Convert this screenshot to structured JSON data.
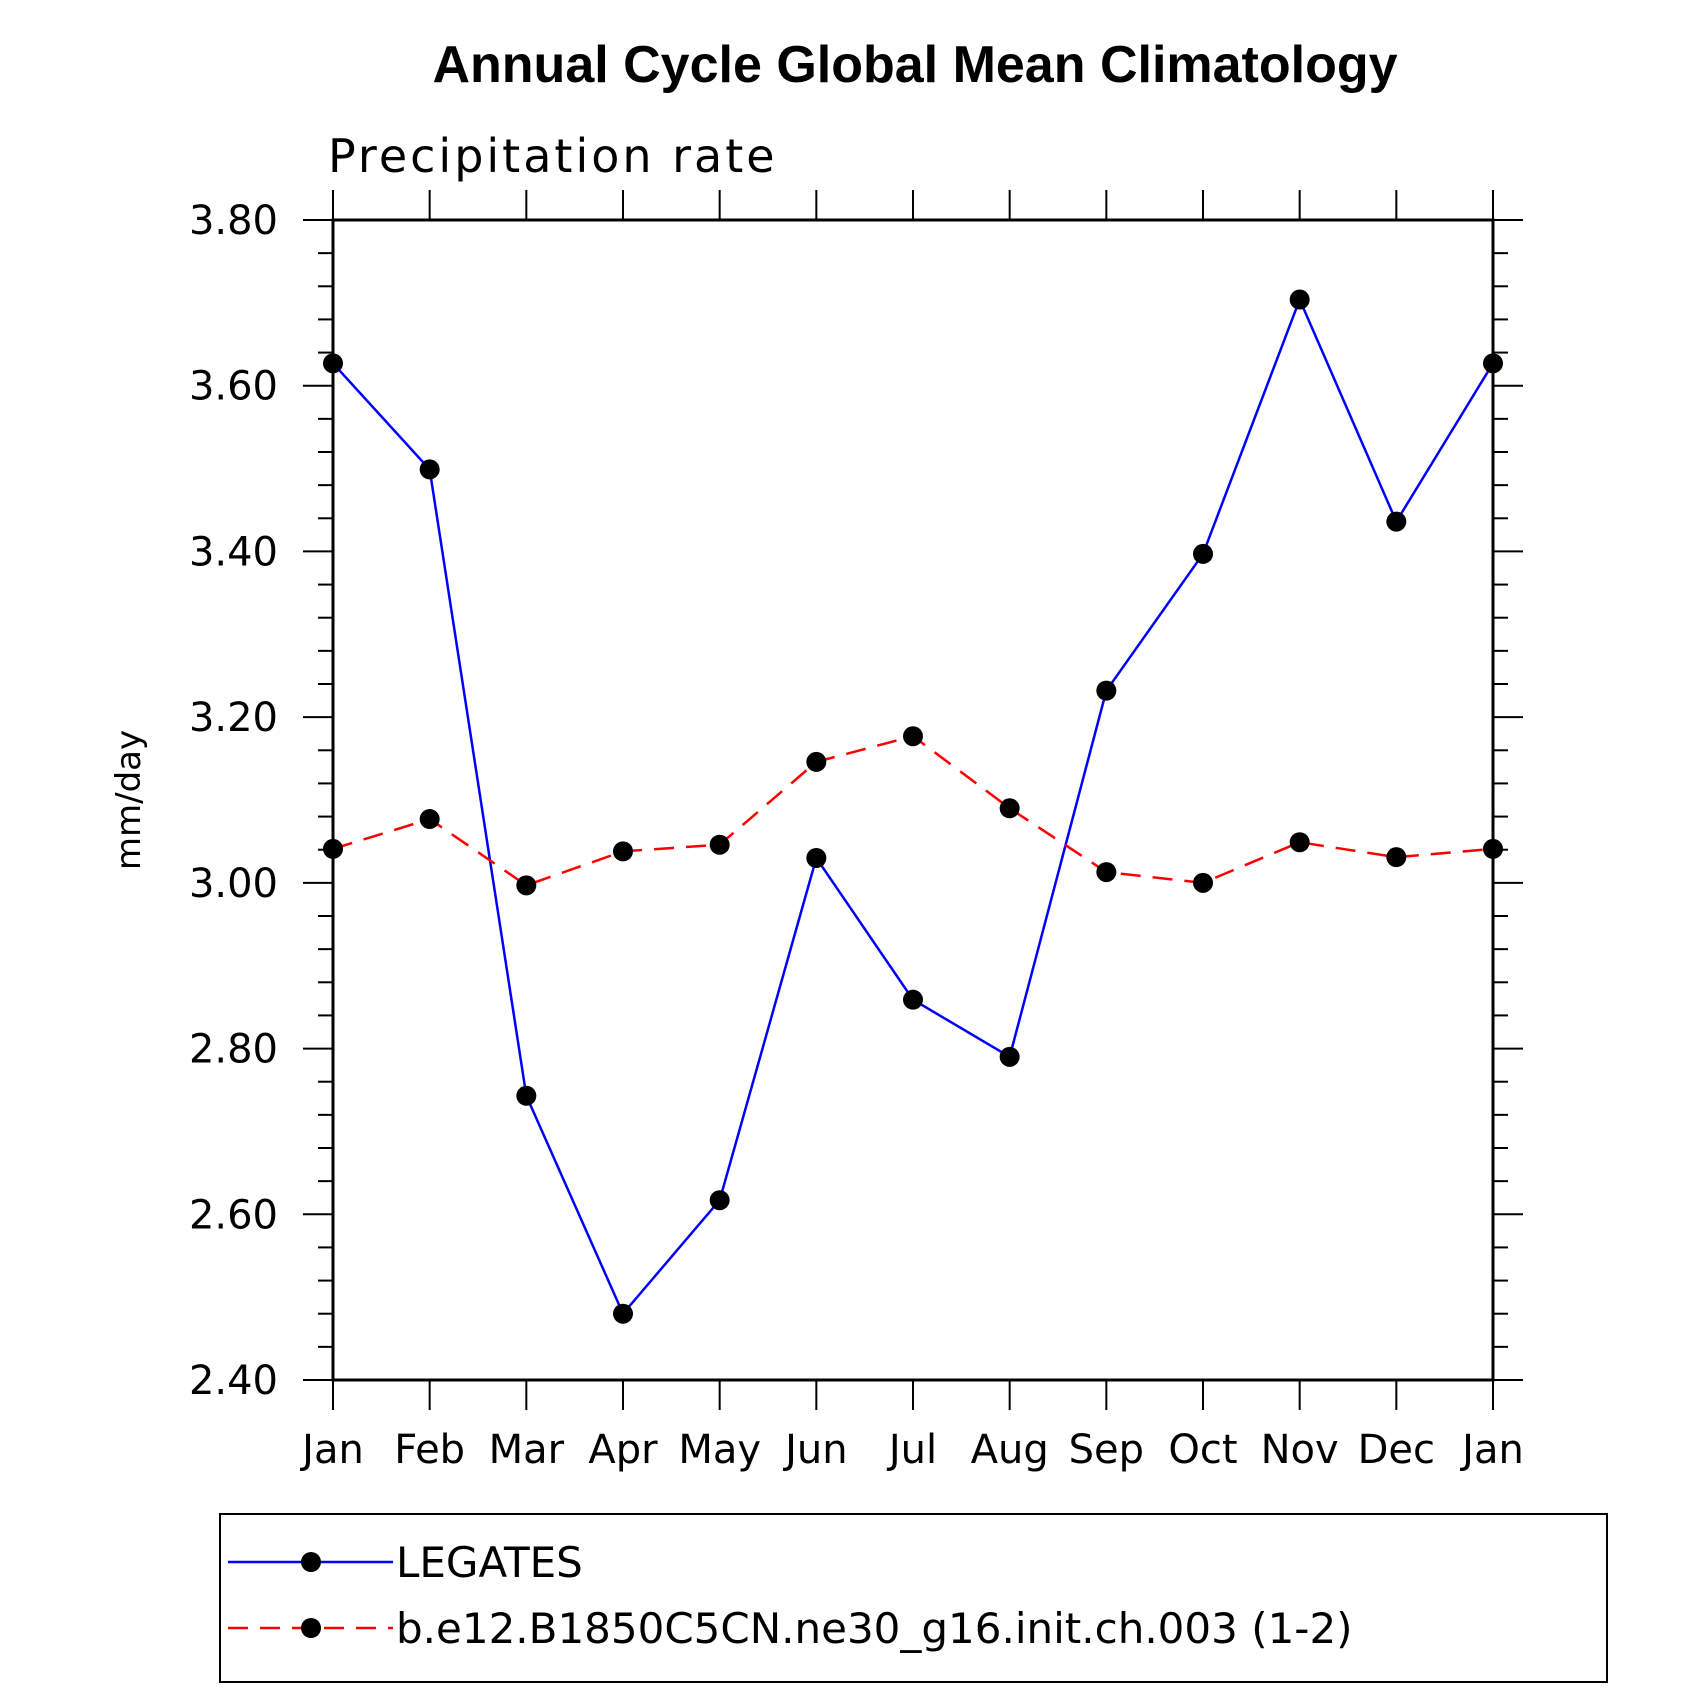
{
  "chart_data": {
    "type": "line",
    "title": "Annual Cycle Global Mean Climatology",
    "subtitle": "Precipitation rate",
    "xlabel": "",
    "ylabel": "mm/day",
    "categories": [
      "Jan",
      "Feb",
      "Mar",
      "Apr",
      "May",
      "Jun",
      "Jul",
      "Aug",
      "Sep",
      "Oct",
      "Nov",
      "Dec",
      "Jan"
    ],
    "ylim": [
      2.4,
      3.8
    ],
    "yticks": [
      "2.40",
      "2.60",
      "2.80",
      "3.00",
      "3.20",
      "3.40",
      "3.60",
      "3.80"
    ],
    "series": [
      {
        "name": "LEGATES",
        "color": "#0000ff",
        "dash": "solid",
        "marker": "circle",
        "values": [
          3.627,
          3.499,
          2.743,
          2.48,
          2.617,
          3.03,
          2.859,
          2.79,
          3.232,
          3.397,
          3.704,
          3.436,
          3.627
        ]
      },
      {
        "name": "b.e12.B1850C5CN.ne30_g16.init.ch.003 (1-2)",
        "color": "#ff0000",
        "dash": "dashed",
        "marker": "circle",
        "values": [
          3.041,
          3.077,
          2.997,
          3.038,
          3.046,
          3.146,
          3.177,
          3.09,
          3.013,
          3.0,
          3.049,
          3.031,
          3.041
        ]
      }
    ],
    "grid": false,
    "legend_position": "bottom"
  }
}
